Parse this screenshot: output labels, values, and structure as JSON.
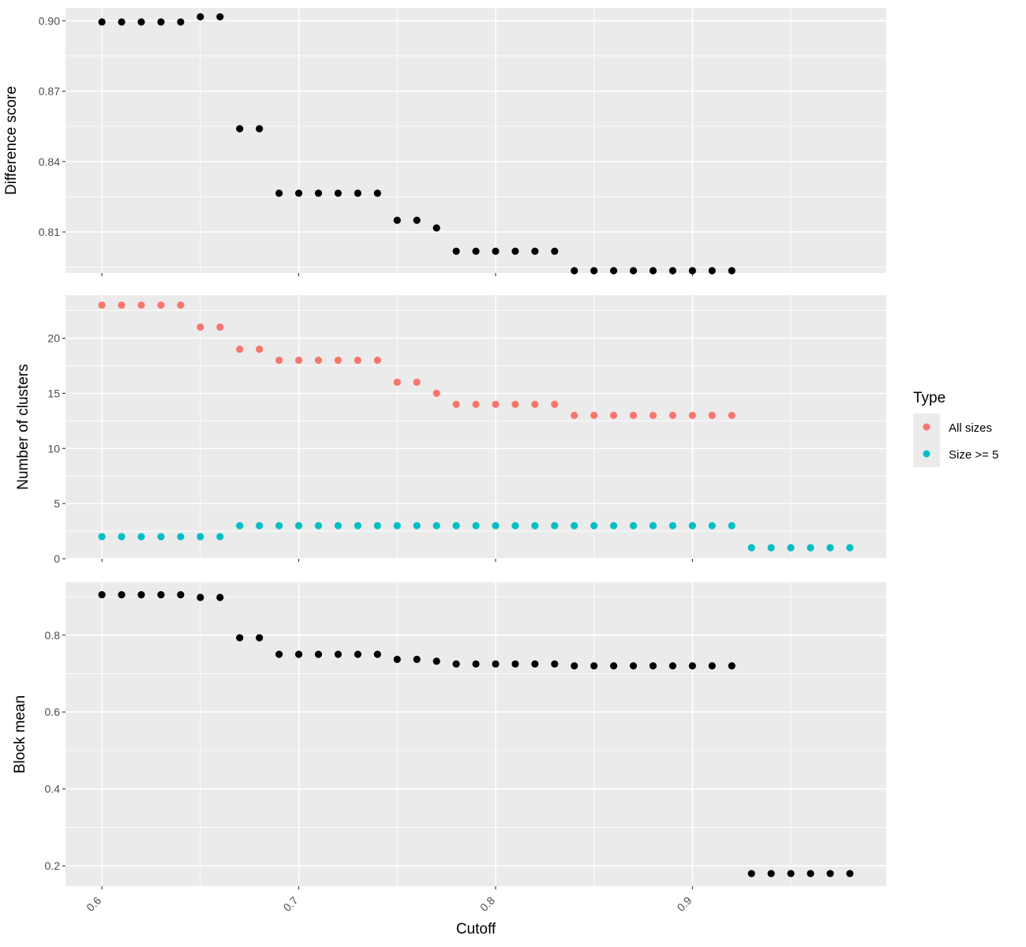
{
  "chart_data": [
    {
      "type": "scatter",
      "panel": "top",
      "ylabel": "Difference score",
      "yticks": [
        0.81,
        0.84,
        0.87,
        0.9
      ],
      "ytick_labels": [
        "0.81",
        "0.84",
        "0.87",
        "0.90"
      ],
      "ylim": [
        0.7925,
        0.9055
      ],
      "xlim": [
        0.5815,
        0.9985
      ],
      "grid": true,
      "series": [
        {
          "color": "#000000",
          "x": [
            0.6,
            0.61,
            0.62,
            0.63,
            0.64,
            0.65,
            0.66,
            0.67,
            0.68,
            0.69,
            0.7,
            0.71,
            0.72,
            0.73,
            0.74,
            0.75,
            0.76,
            0.77,
            0.78,
            0.79,
            0.8,
            0.81,
            0.82,
            0.83,
            0.84,
            0.85,
            0.86,
            0.87,
            0.88,
            0.89,
            0.9,
            0.91,
            0.92
          ],
          "y": [
            0.8995,
            0.8995,
            0.8995,
            0.8995,
            0.8995,
            0.9017,
            0.9017,
            0.854,
            0.854,
            0.8265,
            0.8265,
            0.8265,
            0.8265,
            0.8265,
            0.8265,
            0.815,
            0.815,
            0.8117,
            0.8018,
            0.8018,
            0.8018,
            0.8018,
            0.8018,
            0.8018,
            0.7935,
            0.7935,
            0.7935,
            0.7935,
            0.7935,
            0.7935,
            0.7935,
            0.7935,
            0.7935
          ]
        }
      ]
    },
    {
      "type": "scatter",
      "panel": "middle",
      "ylabel": "Number of clusters",
      "yticks": [
        0,
        5,
        10,
        15,
        20
      ],
      "ytick_labels": [
        "0",
        "5",
        "10",
        "15",
        "20"
      ],
      "ylim": [
        0,
        23.9
      ],
      "xlim": [
        0.5815,
        0.9985
      ],
      "grid": true,
      "legend": {
        "title": "Type",
        "position": "right"
      },
      "series": [
        {
          "name": "All sizes",
          "color": "#F8766D",
          "x": [
            0.6,
            0.61,
            0.62,
            0.63,
            0.64,
            0.65,
            0.66,
            0.67,
            0.68,
            0.69,
            0.7,
            0.71,
            0.72,
            0.73,
            0.74,
            0.75,
            0.76,
            0.77,
            0.78,
            0.79,
            0.8,
            0.81,
            0.82,
            0.83,
            0.84,
            0.85,
            0.86,
            0.87,
            0.88,
            0.89,
            0.9,
            0.91,
            0.92
          ],
          "y": [
            23,
            23,
            23,
            23,
            23,
            21,
            21,
            19,
            19,
            18,
            18,
            18,
            18,
            18,
            18,
            16,
            16,
            15,
            14,
            14,
            14,
            14,
            14,
            14,
            13,
            13,
            13,
            13,
            13,
            13,
            13,
            13,
            13
          ]
        },
        {
          "name": "Size >= 5",
          "color": "#00BFC4",
          "x": [
            0.6,
            0.61,
            0.62,
            0.63,
            0.64,
            0.65,
            0.66,
            0.67,
            0.68,
            0.69,
            0.7,
            0.71,
            0.72,
            0.73,
            0.74,
            0.75,
            0.76,
            0.77,
            0.78,
            0.79,
            0.8,
            0.81,
            0.82,
            0.83,
            0.84,
            0.85,
            0.86,
            0.87,
            0.88,
            0.89,
            0.9,
            0.91,
            0.92,
            0.93,
            0.94,
            0.95,
            0.96,
            0.97,
            0.98
          ],
          "y": [
            2,
            2,
            2,
            2,
            2,
            2,
            2,
            3,
            3,
            3,
            3,
            3,
            3,
            3,
            3,
            3,
            3,
            3,
            3,
            3,
            3,
            3,
            3,
            3,
            3,
            3,
            3,
            3,
            3,
            3,
            3,
            3,
            3,
            1,
            1,
            1,
            1,
            1,
            1
          ]
        }
      ]
    },
    {
      "type": "scatter",
      "panel": "bottom",
      "ylabel": "Block mean",
      "xlabel": "Cutoff",
      "yticks": [
        0.2,
        0.4,
        0.6,
        0.8
      ],
      "ytick_labels": [
        "0.2",
        "0.4",
        "0.6",
        "0.8"
      ],
      "ylim": [
        0.147,
        0.937
      ],
      "xlim": [
        0.5815,
        0.9985
      ],
      "xticks": [
        0.6,
        0.7,
        0.8,
        0.9
      ],
      "xtick_labels": [
        "0.6",
        "0.7",
        "0.8",
        "0.9"
      ],
      "grid": true,
      "series": [
        {
          "color": "#000000",
          "x": [
            0.6,
            0.61,
            0.62,
            0.63,
            0.64,
            0.65,
            0.66,
            0.67,
            0.68,
            0.69,
            0.7,
            0.71,
            0.72,
            0.73,
            0.74,
            0.75,
            0.76,
            0.77,
            0.78,
            0.79,
            0.8,
            0.81,
            0.82,
            0.83,
            0.84,
            0.85,
            0.86,
            0.87,
            0.88,
            0.89,
            0.9,
            0.91,
            0.92,
            0.93,
            0.94,
            0.95,
            0.96,
            0.97,
            0.98
          ],
          "y": [
            0.905,
            0.905,
            0.905,
            0.905,
            0.905,
            0.898,
            0.898,
            0.793,
            0.793,
            0.75,
            0.75,
            0.75,
            0.75,
            0.75,
            0.75,
            0.737,
            0.737,
            0.732,
            0.725,
            0.725,
            0.725,
            0.725,
            0.725,
            0.725,
            0.72,
            0.72,
            0.72,
            0.72,
            0.72,
            0.72,
            0.72,
            0.72,
            0.72,
            0.18,
            0.18,
            0.18,
            0.18,
            0.18,
            0.18
          ]
        }
      ]
    }
  ],
  "x_axis": {
    "title": "Cutoff"
  },
  "legend": {
    "title": "Type",
    "items": [
      {
        "label": "All sizes",
        "color": "#F8766D"
      },
      {
        "label": "Size >= 5",
        "color": "#00BFC4"
      }
    ]
  },
  "style": {
    "panel_bg": "#EBEBEB",
    "grid_color": "#FFFFFF",
    "tick_color": "#333333"
  }
}
